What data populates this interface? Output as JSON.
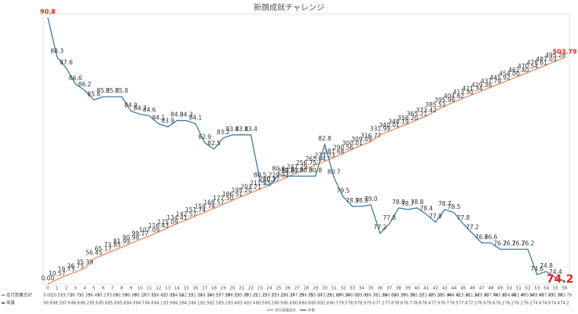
{
  "chart_data": {
    "type": "line",
    "title": "新顔成就チャレンジ",
    "categories": [
      "0",
      "1",
      "2",
      "3",
      "4",
      "5",
      "6",
      "7",
      "8",
      "9",
      "10",
      "11",
      "12",
      "13",
      "14",
      "15",
      "16",
      "17",
      "18",
      "19",
      "20",
      "21",
      "22",
      "23",
      "24",
      "25",
      "26",
      "27",
      "28",
      "29",
      "30",
      "31",
      "32",
      "33",
      "34",
      "35",
      "36",
      "37",
      "38",
      "39",
      "40",
      "41",
      "42",
      "43",
      "44",
      "45",
      "46",
      "47",
      "48",
      "49",
      "50",
      "51",
      "52",
      "53",
      "54",
      "55",
      "56"
    ],
    "series": [
      {
        "name": "走行距離合計",
        "color": "#ef8a5b",
        "axis": "y2",
        "values": [
          0.0,
          10.57,
          19.73,
          26.75,
          35.39,
          56.45,
          65.17,
          73.85,
          81.99,
          90.98,
          99.17,
          107.09,
          116.43,
          125.09,
          134.41,
          142.57,
          151.74,
          159.74,
          168.57,
          177.5,
          186.51,
          195.2,
          203.21,
          211.23,
          220.37,
          229.23,
          238.37,
          247.29,
          256.75,
          265.04,
          273.23,
          281.68,
          290.56,
          300.01,
          309.09,
          316.77,
          331.99,
          340.01,
          348.19,
          356.2,
          365.21,
          373.42,
          385.51,
          395.96,
          404.62,
          413.3,
          421.34,
          429.38,
          437.79,
          445.92,
          454.0,
          462.4,
          470.54,
          478.61,
          487.03,
          495.28,
          503.79
        ],
        "value_labels": [
          "0.00",
          "10.57",
          "19.73",
          "26.75",
          "35.39",
          "56.45",
          "65.17",
          "73.85",
          "81.99",
          "90.98",
          "99.17",
          "107.09",
          "116.43",
          "125.09",
          "134.41",
          "142.57",
          "151.74",
          "159.74",
          "168.57",
          "177.50",
          "186.51",
          "195.20",
          "203.21",
          "211.23",
          "220.37",
          "229.23",
          "238.37",
          "247.29",
          "256.75",
          "265.04",
          "273.23",
          "281.68",
          "290.56",
          "300.01",
          "309.09",
          "316.77",
          "331.99",
          "340.01",
          "348.19",
          "356.20",
          "365.21",
          "373.42",
          "385.51",
          "395.96",
          "404.62",
          "413.30",
          "421.34",
          "429.38",
          "437.79",
          "445.92",
          "454.00",
          "462.40",
          "470.54",
          "478.61",
          "487.03",
          "495.28",
          "503.79"
        ]
      },
      {
        "name": "体重",
        "color": "#3b7ca3",
        "values": [
          90.8,
          88.3,
          87.6,
          86.6,
          86.2,
          85.6,
          85.8,
          85.8,
          85.8,
          84.9,
          84.7,
          84.6,
          84.1,
          83.9,
          84.3,
          84.3,
          84.1,
          82.9,
          82.5,
          83.2,
          83.4,
          83.4,
          83.4,
          80.5,
          80.2,
          80.9,
          80.8,
          80.8,
          80.8,
          80.8,
          82.8,
          80.7,
          79.5,
          78.9,
          78.9,
          79.0,
          77.2,
          77.8,
          78.8,
          78.7,
          78.8,
          78.4,
          77.9,
          78.7,
          78.5,
          77.8,
          77.2,
          76.6,
          76.6,
          76.2,
          76.2,
          76.2,
          76.2,
          74.6,
          74.8,
          74.4,
          74.2
        ],
        "value_labels": [
          "90.8",
          "88.3",
          "87.6",
          "86.6",
          "86.2",
          "85.6",
          "85.8",
          "85.8",
          "85.8",
          "84.9",
          "84.7",
          "84.6",
          "84.1",
          "83.9",
          "84.3",
          "84.3",
          "84.1",
          "82.9",
          "82.5",
          "83.2",
          "83.4",
          "83.4",
          "83.4",
          "80.5",
          "80.2",
          "80.9",
          "80.8",
          "80.8",
          "80.8",
          "80.8",
          "82.8",
          "80.7",
          "79.5",
          "78.9",
          "78.9",
          "79.0",
          "77.2",
          "77.8",
          "78.8",
          "78.7",
          "78.8",
          "78.4",
          "77.9",
          "78.7",
          "78.5",
          "77.8",
          "77.2",
          "76.6",
          "76.6",
          "76.2",
          "76.2",
          "76.2",
          "76.2",
          "74.6",
          "74.8",
          "74.4",
          "74.2"
        ]
      }
    ],
    "ylim": [
      74,
      91
    ],
    "y2lim": [
      0,
      600
    ]
  }
}
